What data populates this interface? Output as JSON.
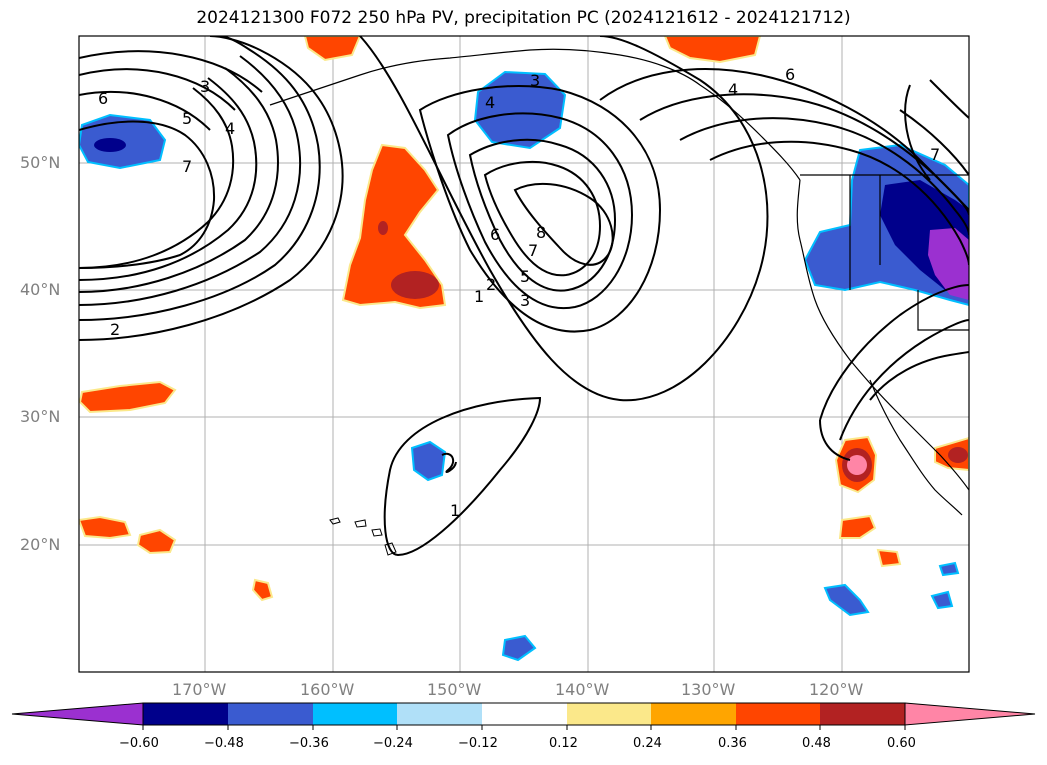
{
  "title": "2024121300 F072 250 hPa PV, precipitation PC (2024121612 - 2024121712)",
  "lat_labels": [
    "50°N",
    "40°N",
    "30°N",
    "20°N"
  ],
  "lon_labels": [
    "170°W",
    "160°W",
    "150°W",
    "140°W",
    "130°W",
    "120°W"
  ],
  "colorbar": {
    "ticks": [
      "−0.60",
      "−0.48",
      "−0.36",
      "−0.24",
      "−0.12",
      "0.12",
      "0.24",
      "0.36",
      "0.48",
      "0.60"
    ],
    "colors": [
      "#9b30d0",
      "#00008b",
      "#3a5bd0",
      "#00bfff",
      "#b0e0f8",
      "#ffffff",
      "#fbe88a",
      "#ffa500",
      "#ff4500",
      "#b22222",
      "#ff85a6"
    ]
  },
  "contour_labels": [
    "6",
    "5",
    "4",
    "3",
    "7",
    "3",
    "4",
    "8",
    "7",
    "6",
    "5",
    "3",
    "2",
    "1",
    "2",
    "1",
    "4",
    "6",
    "7"
  ]
}
